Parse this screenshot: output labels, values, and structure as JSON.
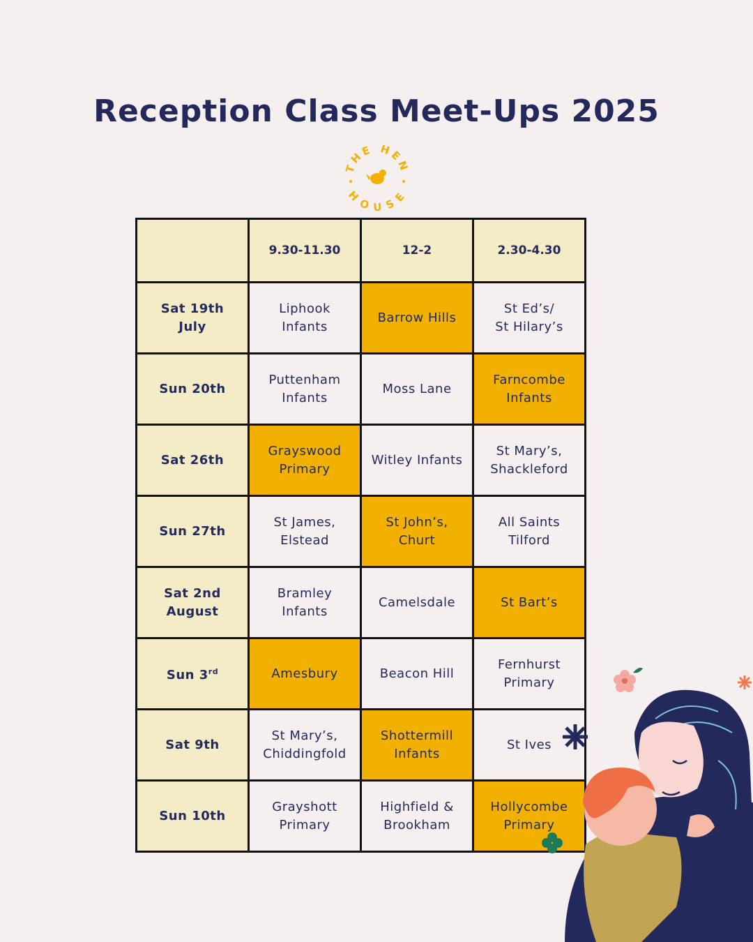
{
  "title": "Reception Class Meet-Ups 2025",
  "logo": {
    "top_text": "THE HEN",
    "bottom_text": "HOUSE"
  },
  "table": {
    "headers": [
      "",
      "9.30-11.30",
      "12-2",
      "2.30-4.30"
    ],
    "rows": [
      {
        "day": "Sat 19th\nJuly",
        "slots": [
          "Liphook\nInfants",
          "Barrow Hills",
          "St Ed’s/\nSt Hilary’s"
        ],
        "highlight": 1
      },
      {
        "day": "Sun 20th",
        "slots": [
          "Puttenham\nInfants",
          "Moss Lane",
          "Farncombe\nInfants"
        ],
        "highlight": 2
      },
      {
        "day": "Sat 26th",
        "slots": [
          "Grayswood\nPrimary",
          "Witley Infants",
          "St Mary’s,\nShackleford"
        ],
        "highlight": 0
      },
      {
        "day": "Sun 27th",
        "slots": [
          "St James,\nElstead",
          "St John’s,\nChurt",
          "All Saints\nTilford"
        ],
        "highlight": 1
      },
      {
        "day": "Sat 2nd\nAugust",
        "slots": [
          "Bramley\nInfants",
          "Camelsdale",
          "St Bart’s"
        ],
        "highlight": 2
      },
      {
        "day": "Sun 3",
        "day_sup": "rd",
        "slots": [
          "Amesbury",
          "Beacon Hill",
          "Fernhurst\nPrimary"
        ],
        "highlight": 0
      },
      {
        "day": "Sat 9th",
        "slots": [
          "St Mary’s,\nChiddingfold",
          "Shottermill\nInfants",
          "St Ives"
        ],
        "highlight": 1
      },
      {
        "day": "Sun 10th",
        "slots": [
          "Grayshott\nPrimary",
          "Highfield &\nBrookham",
          "Hollycombe\nPrimary"
        ],
        "highlight": 2
      }
    ]
  },
  "colors": {
    "background": "#f6efef",
    "navy": "#232a5b",
    "header_fill": "#f4ebc7",
    "highlight": "#f2b100",
    "logo": "#f2b100"
  },
  "icons": [
    "hen-logo",
    "mother-and-child-illustration",
    "sparkle-icon",
    "flower-icon"
  ]
}
